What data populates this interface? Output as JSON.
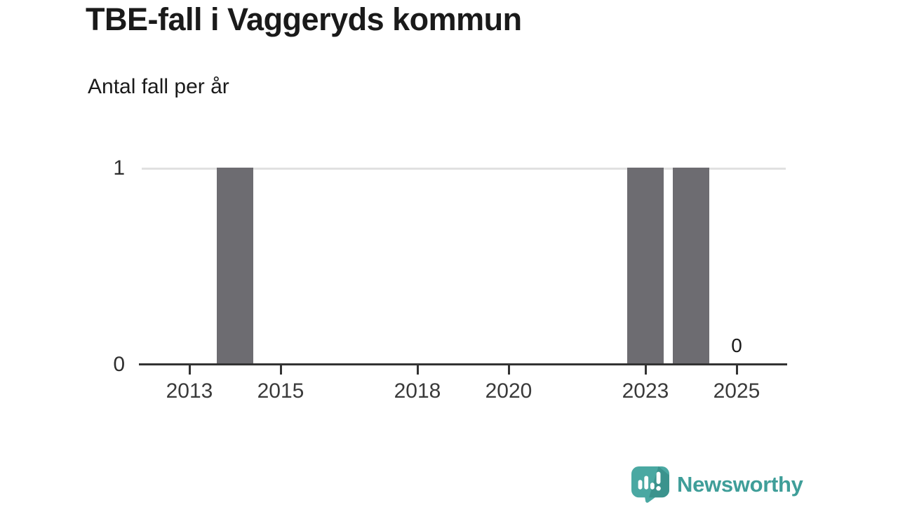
{
  "header": {
    "title": "TBE-fall i Vaggeryds kommun",
    "subtitle": "Antal fall per år"
  },
  "chart_data": {
    "type": "bar",
    "title": "TBE-fall i Vaggeryds kommun",
    "subtitle": "Antal fall per år",
    "categories": [
      2012,
      2013,
      2014,
      2015,
      2016,
      2017,
      2018,
      2019,
      2020,
      2021,
      2022,
      2023,
      2024,
      2025
    ],
    "values": [
      0,
      0,
      1,
      0,
      0,
      0,
      0,
      0,
      0,
      0,
      0,
      1,
      1,
      0
    ],
    "x_tick_labels": [
      2013,
      2015,
      2018,
      2020,
      2023,
      2025
    ],
    "y_ticks": [
      0,
      1
    ],
    "ylim": [
      0,
      1
    ],
    "xlabel": "",
    "ylabel": "Antal fall per år",
    "grid": "single horizontal gridline at y=1",
    "legend": "none",
    "bar_color": "#6d6c71",
    "value_labels": [
      {
        "category": 2025,
        "label": "0"
      }
    ]
  },
  "footer": {
    "brand": "Newsworthy",
    "brand_color": "#3f9e99",
    "logo_icon": "bar-chart-speech-bubble-icon"
  },
  "colors": {
    "background": "#ffffff",
    "title": "#1a1a1a",
    "bar": "#6d6c71",
    "gridline": "#e1e1e1",
    "axis": "#333333",
    "tick_label": "#3a3a3a",
    "brand_teal": "#3f9e99",
    "brand_teal_dark": "#38908b"
  }
}
